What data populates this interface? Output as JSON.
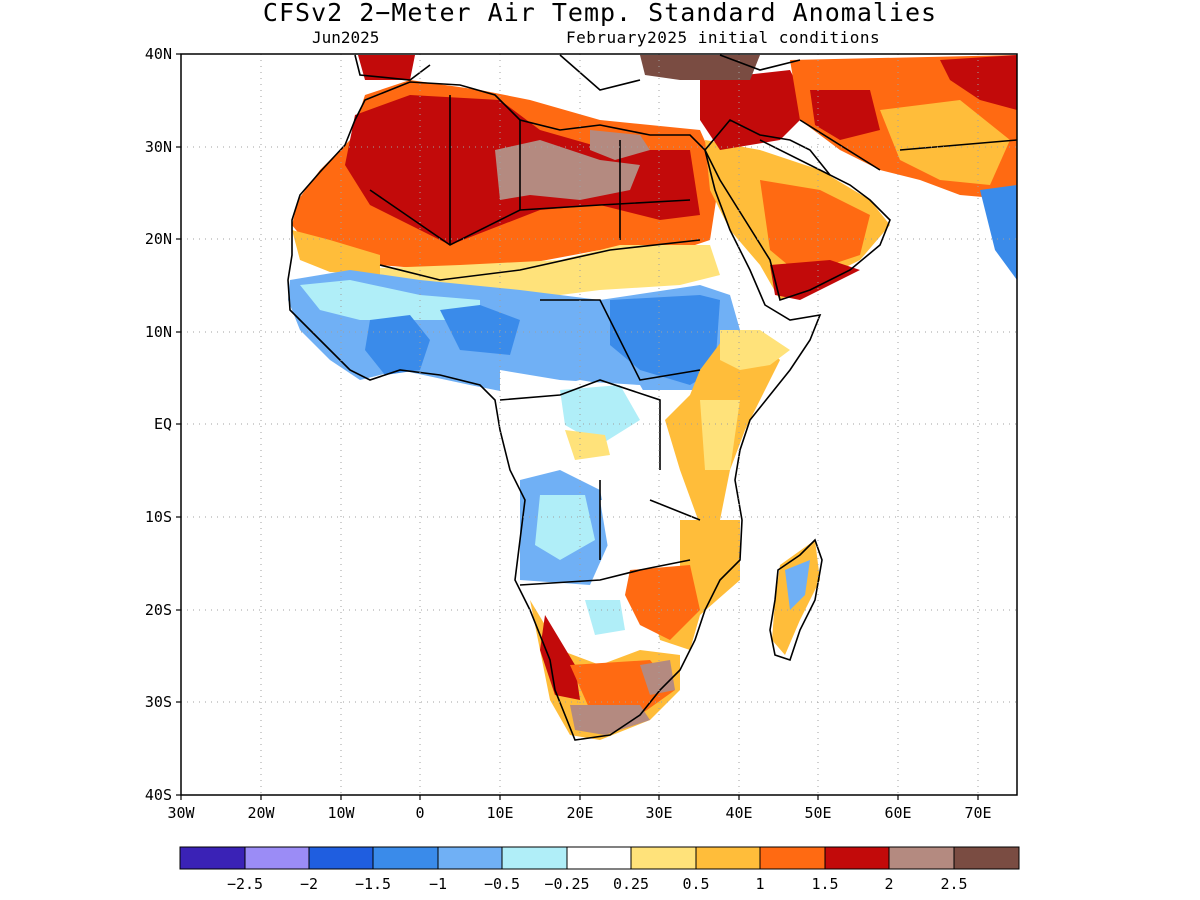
{
  "title": "CFSv2 2-Meter Air Temp. Standard Anomalies",
  "subtitle_left": "Jun2025",
  "subtitle_right": "February2025 initial conditions",
  "map": {
    "lat_labels": [
      "40N",
      "30N",
      "20N",
      "10N",
      "EQ",
      "10S",
      "20S",
      "30S",
      "40S"
    ],
    "lon_labels": [
      "30W",
      "20W",
      "10W",
      "0",
      "10E",
      "20E",
      "30E",
      "40E",
      "50E",
      "60E",
      "70E"
    ],
    "lat_range": [
      -40,
      40
    ],
    "lon_range": [
      -30,
      75
    ],
    "grid_lines": "dotted"
  },
  "colorbar": {
    "colors": [
      "#3a22b6",
      "#9b8cf6",
      "#1f5ee0",
      "#3a8bea",
      "#70b0f5",
      "#b0eef8",
      "#ffffff",
      "#ffe27a",
      "#ffbd3a",
      "#ff6a12",
      "#c20a0a",
      "#b48a80",
      "#7a4c42"
    ],
    "labels": [
      "-2.5",
      "-2",
      "-1.5",
      "-1",
      "-0.5",
      "-0.25",
      "0.25",
      "0.5",
      "1",
      "1.5",
      "2",
      "2.5"
    ]
  }
}
